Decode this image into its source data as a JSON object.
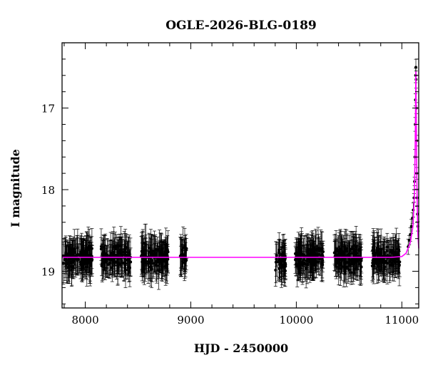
{
  "chart_data": {
    "type": "scatter",
    "title": "OGLE-2026-BLG-0189",
    "xlabel": "HJD - 2450000",
    "ylabel": "I magnitude",
    "xlim": [
      7780,
      11160
    ],
    "ylim": [
      19.45,
      16.2
    ],
    "y_inverted": true,
    "x_ticks": [
      8000,
      9000,
      10000,
      11000
    ],
    "y_ticks": [
      17,
      18,
      19
    ],
    "grid": false,
    "legend": "none",
    "baseline_magnitude": 18.83,
    "seasons": [
      {
        "start": 7790,
        "end": 8070,
        "center": 18.83,
        "spread": 0.12
      },
      {
        "start": 8150,
        "end": 8430,
        "center": 18.83,
        "spread": 0.12
      },
      {
        "start": 8530,
        "end": 8790,
        "center": 18.83,
        "spread": 0.13
      },
      {
        "start": 8900,
        "end": 8960,
        "center": 18.8,
        "spread": 0.1
      },
      {
        "start": 9800,
        "end": 9900,
        "center": 18.86,
        "spread": 0.12
      },
      {
        "start": 9990,
        "end": 10260,
        "center": 18.83,
        "spread": 0.12
      },
      {
        "start": 10360,
        "end": 10620,
        "center": 18.83,
        "spread": 0.12
      },
      {
        "start": 10720,
        "end": 10980,
        "center": 18.83,
        "spread": 0.12
      }
    ],
    "event_points": [
      {
        "x": 11060,
        "y": 18.7
      },
      {
        "x": 11070,
        "y": 18.62
      },
      {
        "x": 11080,
        "y": 18.55
      },
      {
        "x": 11090,
        "y": 18.45
      },
      {
        "x": 11100,
        "y": 18.35
      },
      {
        "x": 11108,
        "y": 18.25
      },
      {
        "x": 11115,
        "y": 18.1
      },
      {
        "x": 11120,
        "y": 17.9
      },
      {
        "x": 11124,
        "y": 17.6
      },
      {
        "x": 11127,
        "y": 17.2
      },
      {
        "x": 11129,
        "y": 16.9
      },
      {
        "x": 11131,
        "y": 16.6
      },
      {
        "x": 11133,
        "y": 16.5
      },
      {
        "x": 11135,
        "y": 16.65
      },
      {
        "x": 11137,
        "y": 17.0
      },
      {
        "x": 11139,
        "y": 17.4
      },
      {
        "x": 11141,
        "y": 17.8
      },
      {
        "x": 11144,
        "y": 18.1
      },
      {
        "x": 11148,
        "y": 18.3
      },
      {
        "x": 11152,
        "y": 18.45
      }
    ],
    "model": {
      "name": "model light curve",
      "color": "#ff00ff",
      "x": [
        7780,
        10900,
        11000,
        11040,
        11080,
        11105,
        11118,
        11126,
        11130,
        11133,
        11136,
        11140,
        11146,
        11152,
        11160
      ],
      "y": [
        18.83,
        18.83,
        18.82,
        18.78,
        18.65,
        18.45,
        18.1,
        17.5,
        16.95,
        16.55,
        16.95,
        17.6,
        18.2,
        18.55,
        18.72
      ]
    },
    "point_color": "#000000"
  }
}
